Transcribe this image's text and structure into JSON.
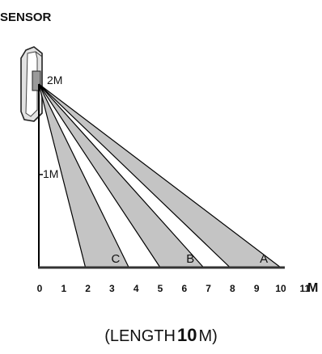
{
  "title": "SENSOR",
  "height_labels": {
    "top": "2M",
    "mid": "1M"
  },
  "x_ticks": [
    "0",
    "1",
    "2",
    "3",
    "4",
    "5",
    "6",
    "7",
    "8",
    "9",
    "10",
    "11"
  ],
  "x_unit": "M",
  "zones": [
    {
      "label": "C",
      "start": 1.9,
      "end": 3.7
    },
    {
      "label": "B",
      "start": 5.0,
      "end": 6.8
    },
    {
      "label": "A",
      "start": 7.9,
      "end": 10.0
    }
  ],
  "caption": {
    "prefix": "(LENGTH",
    "value": "10",
    "suffix": "M)"
  },
  "colors": {
    "beam": "#c4c4c4",
    "line": "#000000",
    "baseline": "#333333"
  }
}
